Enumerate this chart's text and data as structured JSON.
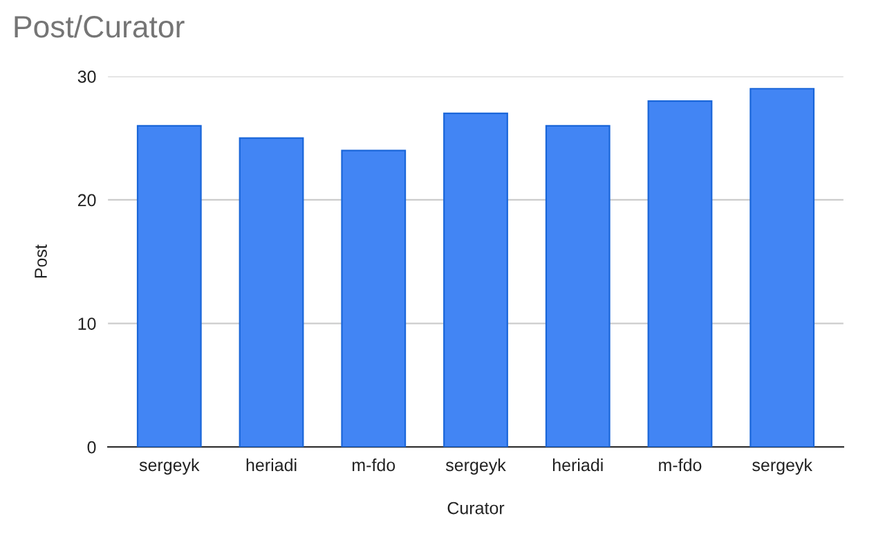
{
  "chart_data": {
    "type": "bar",
    "title": "Post/Curator",
    "xlabel": "Curator",
    "ylabel": "Post",
    "categories": [
      "sergeyk",
      "heriadi",
      "m-fdo",
      "sergeyk",
      "heriadi",
      "m-fdo",
      "sergeyk"
    ],
    "values": [
      26,
      25,
      24,
      27,
      26,
      28,
      29
    ],
    "color": "#4285f4",
    "ylim": [
      0,
      30
    ],
    "yticks": [
      0,
      10,
      20,
      30
    ],
    "grid": "y",
    "legend": false
  }
}
